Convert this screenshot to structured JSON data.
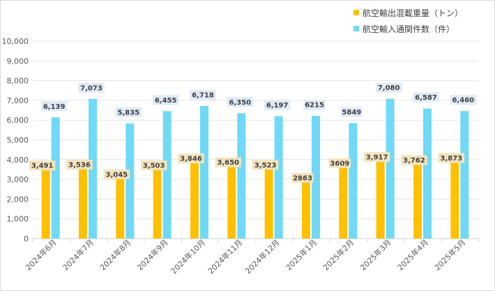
{
  "chart_data": {
    "type": "bar",
    "categories": [
      "2024年6月",
      "2024年7月",
      "2024年8月",
      "2024年9月",
      "2024年10月",
      "2024年11月",
      "2024年12月",
      "2025年1月",
      "2025年2月",
      "2025年3月",
      "2025年4月",
      "2025年5月"
    ],
    "series": [
      {
        "name": "航空輸出混載重量（トン）",
        "color": "#ffc000",
        "label_bg": "#f2e3bd",
        "values": [
          3491,
          3536,
          3045,
          3503,
          3846,
          3650,
          3523,
          2863,
          3609,
          3917,
          3762,
          3873
        ],
        "labels": [
          "3,491",
          "3,536",
          "3,045",
          "3,503",
          "3,846",
          "3,650",
          "3,523",
          "2863",
          "3609",
          "3,917",
          "3,762",
          "3,873"
        ]
      },
      {
        "name": "航空輸入通関件数（件）",
        "color": "#6fd9f7",
        "label_bg": "#deeaf6",
        "values": [
          6139,
          7073,
          5835,
          6455,
          6718,
          6350,
          6197,
          6215,
          5849,
          7080,
          6587,
          6460
        ],
        "labels": [
          "6,139",
          "7,073",
          "5,835",
          "6,455",
          "6,718",
          "6,350",
          "6,197",
          "6215",
          "5849",
          "7,080",
          "6,587",
          "6,460"
        ]
      }
    ],
    "ylim": [
      0,
      10000
    ],
    "yticks": [
      "0",
      "1,000",
      "2,000",
      "3,000",
      "4,000",
      "5,000",
      "6,000",
      "7,000",
      "8,000",
      "9,000",
      "10,000"
    ],
    "grid": true,
    "legend_position": "top-right"
  }
}
